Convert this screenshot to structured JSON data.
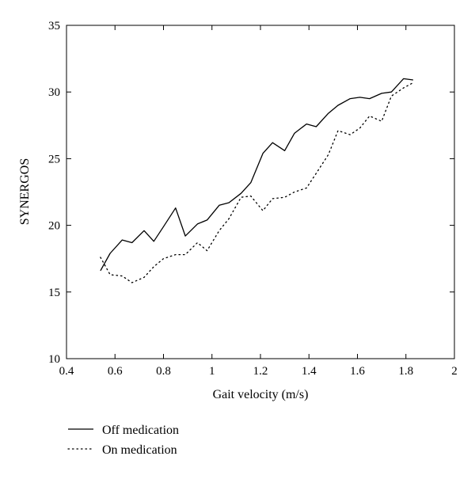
{
  "chart_data": {
    "type": "line",
    "title": "",
    "xlabel": "Gait velocity (m/s)",
    "ylabel": "SYNERGOS",
    "xlim": [
      0.4,
      2.0
    ],
    "ylim": [
      10,
      35
    ],
    "xticks": [
      0.4,
      0.6,
      0.8,
      1.0,
      1.2,
      1.4,
      1.6,
      1.8,
      2.0
    ],
    "xtick_labels": [
      "0.4",
      "0.6",
      "0.8",
      "1",
      "1.2",
      "1.4",
      "1.6",
      "1.8",
      "2"
    ],
    "yticks": [
      10,
      15,
      20,
      25,
      30,
      35
    ],
    "ytick_labels": [
      "10",
      "15",
      "20",
      "25",
      "30",
      "35"
    ],
    "grid": false,
    "legend_position": "bottom-left-outside",
    "series": [
      {
        "name": "Off medication",
        "style": "solid",
        "color": "#000000",
        "x": [
          0.54,
          0.58,
          0.63,
          0.67,
          0.72,
          0.76,
          0.8,
          0.85,
          0.89,
          0.94,
          0.98,
          1.03,
          1.07,
          1.12,
          1.16,
          1.21,
          1.25,
          1.3,
          1.34,
          1.39,
          1.43,
          1.48,
          1.52,
          1.57,
          1.61,
          1.65,
          1.7,
          1.74,
          1.79,
          1.83
        ],
        "y": [
          16.6,
          17.9,
          18.9,
          18.7,
          19.6,
          18.8,
          19.9,
          21.3,
          19.2,
          20.1,
          20.4,
          21.5,
          21.7,
          22.4,
          23.2,
          25.4,
          26.2,
          25.6,
          26.9,
          27.6,
          27.4,
          28.4,
          29.0,
          29.5,
          29.6,
          29.5,
          29.9,
          30.0,
          31.0,
          30.9
        ]
      },
      {
        "name": "On medication",
        "style": "dotted",
        "color": "#000000",
        "x": [
          0.54,
          0.58,
          0.63,
          0.67,
          0.72,
          0.76,
          0.8,
          0.85,
          0.89,
          0.94,
          0.98,
          1.03,
          1.07,
          1.12,
          1.16,
          1.21,
          1.25,
          1.3,
          1.34,
          1.39,
          1.43,
          1.48,
          1.52,
          1.57,
          1.61,
          1.65,
          1.7,
          1.74,
          1.79,
          1.83
        ],
        "y": [
          17.6,
          16.3,
          16.2,
          15.7,
          16.1,
          16.9,
          17.5,
          17.8,
          17.8,
          18.7,
          18.1,
          19.6,
          20.5,
          22.1,
          22.2,
          21.1,
          22.0,
          22.1,
          22.5,
          22.8,
          23.9,
          25.3,
          27.1,
          26.8,
          27.3,
          28.2,
          27.8,
          29.7,
          30.3,
          30.7
        ]
      }
    ]
  }
}
